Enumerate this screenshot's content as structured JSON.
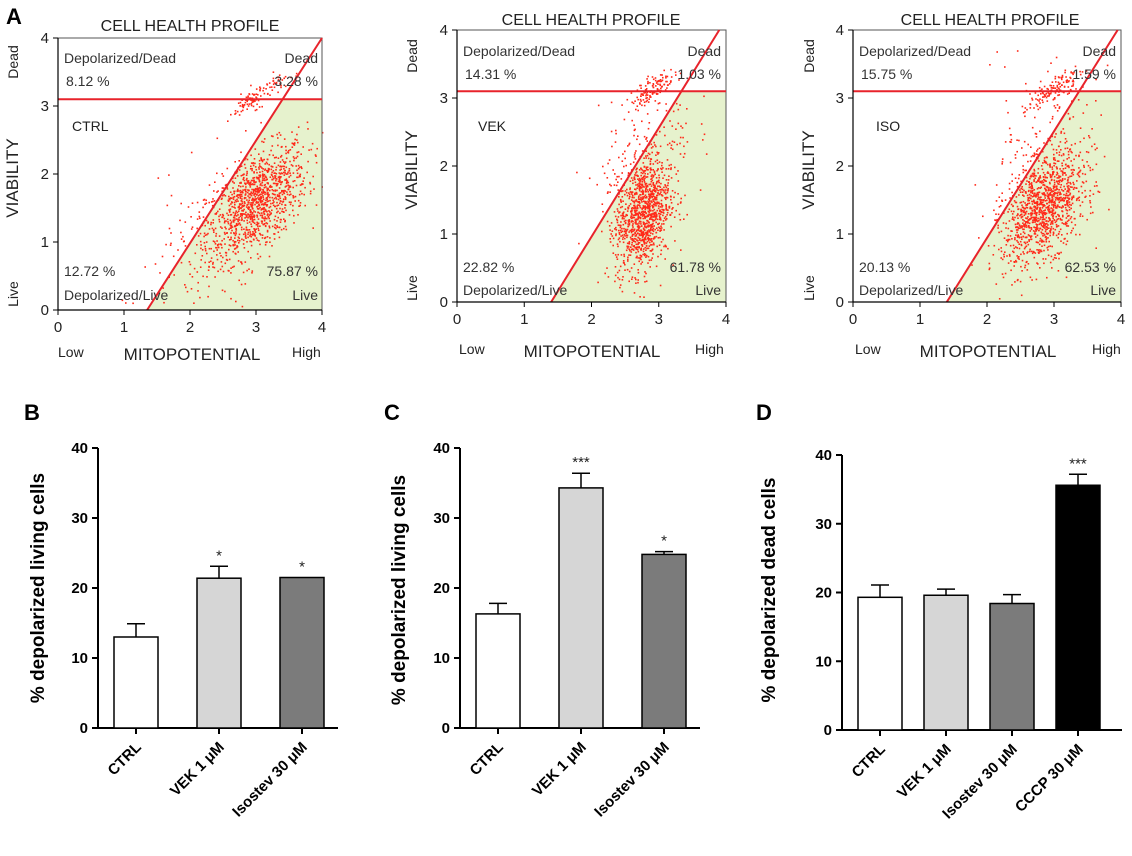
{
  "panel_letters": [
    "A",
    "B",
    "C",
    "D"
  ],
  "chart_data": [
    {
      "type": "scatter",
      "panel": "A",
      "title": "CELL HEALTH PROFILE",
      "xlabel": "MITOPOTENTIAL",
      "ylabel": "VIABILITY",
      "x_low_label": "Low",
      "x_high_label": "High",
      "y_top_label": "Dead",
      "y_bottom_label": "Live",
      "xlim": [
        0,
        4
      ],
      "ylim": [
        0,
        4
      ],
      "x_ticks": [
        "0",
        "1",
        "2",
        "3",
        "4"
      ],
      "y_ticks": [
        "0",
        "1",
        "2",
        "3",
        "4"
      ],
      "condition": "CTRL",
      "quadrants": {
        "depolarized_dead": {
          "label": "Depolarized/Dead",
          "value": "8.12 %"
        },
        "dead": {
          "label": "Dead",
          "value": "3.28 %"
        },
        "depolarized_live": {
          "label": "Depolarized/Live",
          "value": "12.72 %"
        },
        "live": {
          "label": "Live",
          "value": "75.87 %"
        }
      },
      "gates": {
        "horizontal_y": 3.1,
        "diagonal": {
          "x1": 1.35,
          "y1": 0,
          "x2": 4.0,
          "y2": 4.0
        }
      },
      "clusters": [
        {
          "cx": 3.0,
          "cy": 1.6,
          "sx": 0.38,
          "sy": 0.35,
          "n": 1150
        },
        {
          "cx": 3.0,
          "cy": 3.15,
          "sx": 0.22,
          "sy": 0.08,
          "n": 110
        },
        {
          "cx": 2.25,
          "cy": 0.9,
          "sx": 0.5,
          "sy": 0.6,
          "n": 140
        }
      ]
    },
    {
      "type": "scatter",
      "panel": "A",
      "title": "CELL HEALTH PROFILE",
      "xlabel": "MITOPOTENTIAL",
      "ylabel": "VIABILITY",
      "x_low_label": "Low",
      "x_high_label": "High",
      "y_top_label": "Dead",
      "y_bottom_label": "Live",
      "xlim": [
        0,
        4
      ],
      "ylim": [
        0,
        4
      ],
      "x_ticks": [
        "0",
        "1",
        "2",
        "3",
        "4"
      ],
      "y_ticks": [
        "0",
        "1",
        "2",
        "3",
        "4"
      ],
      "condition": "VEK",
      "quadrants": {
        "depolarized_dead": {
          "label": "Depolarized/Dead",
          "value": "14.31 %"
        },
        "dead": {
          "label": "Dead",
          "value": "1.03 %"
        },
        "depolarized_live": {
          "label": "Depolarized/Live",
          "value": "22.82 %"
        },
        "live": {
          "label": "Live",
          "value": "61.78 %"
        }
      },
      "gates": {
        "horizontal_y": 3.1,
        "diagonal": {
          "x1": 1.4,
          "y1": 0,
          "x2": 3.9,
          "y2": 4.0
        }
      },
      "clusters": [
        {
          "cx": 2.75,
          "cy": 1.3,
          "sx": 0.2,
          "sy": 0.4,
          "n": 1050
        },
        {
          "cx": 2.9,
          "cy": 3.15,
          "sx": 0.16,
          "sy": 0.09,
          "n": 120
        },
        {
          "cx": 2.8,
          "cy": 2.0,
          "sx": 0.35,
          "sy": 0.6,
          "n": 200
        }
      ]
    },
    {
      "type": "scatter",
      "panel": "A",
      "title": "CELL HEALTH PROFILE",
      "xlabel": "MITOPOTENTIAL",
      "ylabel": "VIABILITY",
      "x_low_label": "Low",
      "x_high_label": "High",
      "y_top_label": "Dead",
      "y_bottom_label": "Live",
      "xlim": [
        0,
        4
      ],
      "ylim": [
        0,
        4
      ],
      "x_ticks": [
        "0",
        "1",
        "2",
        "3",
        "4"
      ],
      "y_ticks": [
        "0",
        "1",
        "2",
        "3",
        "4"
      ],
      "condition": "ISO",
      "quadrants": {
        "depolarized_dead": {
          "label": "Depolarized/Dead",
          "value": "15.75 %"
        },
        "dead": {
          "label": "Dead",
          "value": "1.59 %"
        },
        "depolarized_live": {
          "label": "Depolarized/Live",
          "value": "20.13 %"
        },
        "live": {
          "label": "Live",
          "value": "62.53 %"
        }
      },
      "gates": {
        "horizontal_y": 3.1,
        "diagonal": {
          "x1": 1.4,
          "y1": 0,
          "x2": 3.95,
          "y2": 4.0
        }
      },
      "clusters": [
        {
          "cx": 2.85,
          "cy": 1.4,
          "sx": 0.3,
          "sy": 0.35,
          "n": 1100
        },
        {
          "cx": 3.0,
          "cy": 3.15,
          "sx": 0.2,
          "sy": 0.09,
          "n": 130
        },
        {
          "cx": 2.7,
          "cy": 1.9,
          "sx": 0.45,
          "sy": 0.7,
          "n": 200
        }
      ]
    },
    {
      "type": "bar",
      "panel": "B",
      "ylabel": "% depolarized living cells",
      "ylim": [
        0,
        40
      ],
      "y_ticks": [
        "0",
        "10",
        "20",
        "30",
        "40"
      ],
      "categories": [
        "CTRL",
        "VEK 1 μM",
        "Isostev 30 μM"
      ],
      "values": [
        13.0,
        21.4,
        21.5
      ],
      "errors": [
        1.9,
        1.7,
        0
      ],
      "bar_colors": [
        "#ffffff",
        "#d6d6d6",
        "#7b7b7b"
      ],
      "significance": [
        "",
        "*",
        "*"
      ]
    },
    {
      "type": "bar",
      "panel": "C",
      "ylabel": "% depolarized living cells",
      "ylim": [
        0,
        40
      ],
      "y_ticks": [
        "0",
        "10",
        "20",
        "30",
        "40"
      ],
      "categories": [
        "CTRL",
        "VEK 1 μM",
        "Isostev 30 μM"
      ],
      "values": [
        16.3,
        34.3,
        24.8
      ],
      "errors": [
        1.5,
        2.1,
        0.4
      ],
      "bar_colors": [
        "#ffffff",
        "#d6d6d6",
        "#7b7b7b"
      ],
      "significance": [
        "",
        "***",
        "*"
      ]
    },
    {
      "type": "bar",
      "panel": "D",
      "ylabel": "% depolarized dead cells",
      "ylim": [
        0,
        40
      ],
      "y_ticks": [
        "0",
        "10",
        "20",
        "30",
        "40"
      ],
      "categories": [
        "CTRL",
        "VEK 1 μM",
        "Isostev 30 μM",
        "CCCP 30 μM"
      ],
      "values": [
        19.3,
        19.6,
        18.4,
        35.6
      ],
      "errors": [
        1.8,
        0.9,
        1.3,
        1.6
      ],
      "bar_colors": [
        "#ffffff",
        "#d6d6d6",
        "#7b7b7b",
        "#000000"
      ],
      "significance": [
        "",
        "",
        "",
        "***"
      ]
    }
  ],
  "colors": {
    "dot": "#ff2a1a",
    "gate_line": "#e8232b",
    "live_zone": "#e6f2cd",
    "axis": "#000000"
  }
}
